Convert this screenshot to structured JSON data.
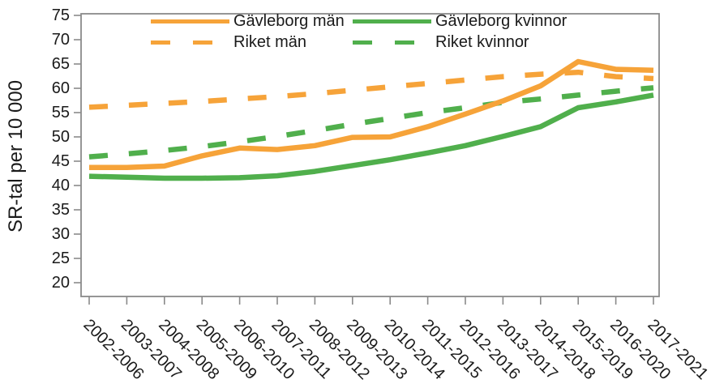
{
  "chart_data": {
    "type": "line",
    "title": "",
    "xlabel": "",
    "ylabel": "SR-tal per 10 000",
    "ylim": [
      20,
      75
    ],
    "yticks": [
      20,
      25,
      30,
      35,
      40,
      45,
      50,
      55,
      60,
      65,
      70,
      75
    ],
    "grid": false,
    "legend_position": "top-inside",
    "axis_color": "#8a8a8a",
    "text_color": "#1a1a1a",
    "categories": [
      "2002-2006",
      "2003-2007",
      "2004-2008",
      "2005-2009",
      "2006-2010",
      "2007-2011",
      "2008-2012",
      "2009-2013",
      "2010-2014",
      "2011-2015",
      "2012-2016",
      "2013-2017",
      "2014-2018",
      "2015-2019",
      "2016-2020",
      "2017-2021"
    ],
    "series": [
      {
        "name": "Gävleborg män",
        "color": "#F6A339",
        "style": "solid",
        "values": [
          43.7,
          43.7,
          44.0,
          46.1,
          47.7,
          47.4,
          48.2,
          49.9,
          50.0,
          52.1,
          54.7,
          57.4,
          60.5,
          65.5,
          63.9,
          63.7
        ]
      },
      {
        "name": "Riket män",
        "color": "#F6A339",
        "style": "dashed",
        "values": [
          56.1,
          56.5,
          56.9,
          57.3,
          57.8,
          58.3,
          58.9,
          59.6,
          60.3,
          61.0,
          61.7,
          62.4,
          62.9,
          63.3,
          62.4,
          62.0
        ]
      },
      {
        "name": "Gävleborg kvinnor",
        "color": "#50AF4C",
        "style": "solid",
        "values": [
          41.9,
          41.7,
          41.5,
          41.5,
          41.6,
          42.0,
          42.9,
          44.1,
          45.3,
          46.7,
          48.2,
          50.1,
          52.1,
          56.0,
          57.2,
          58.6
        ]
      },
      {
        "name": "Riket kvinnor",
        "color": "#50AF4C",
        "style": "dashed",
        "values": [
          45.9,
          46.5,
          47.2,
          48.0,
          49.0,
          50.1,
          51.3,
          52.6,
          53.8,
          55.0,
          56.0,
          57.1,
          57.8,
          58.6,
          59.4,
          60.1
        ]
      }
    ],
    "legend_order": [
      0,
      2,
      1,
      3
    ]
  }
}
